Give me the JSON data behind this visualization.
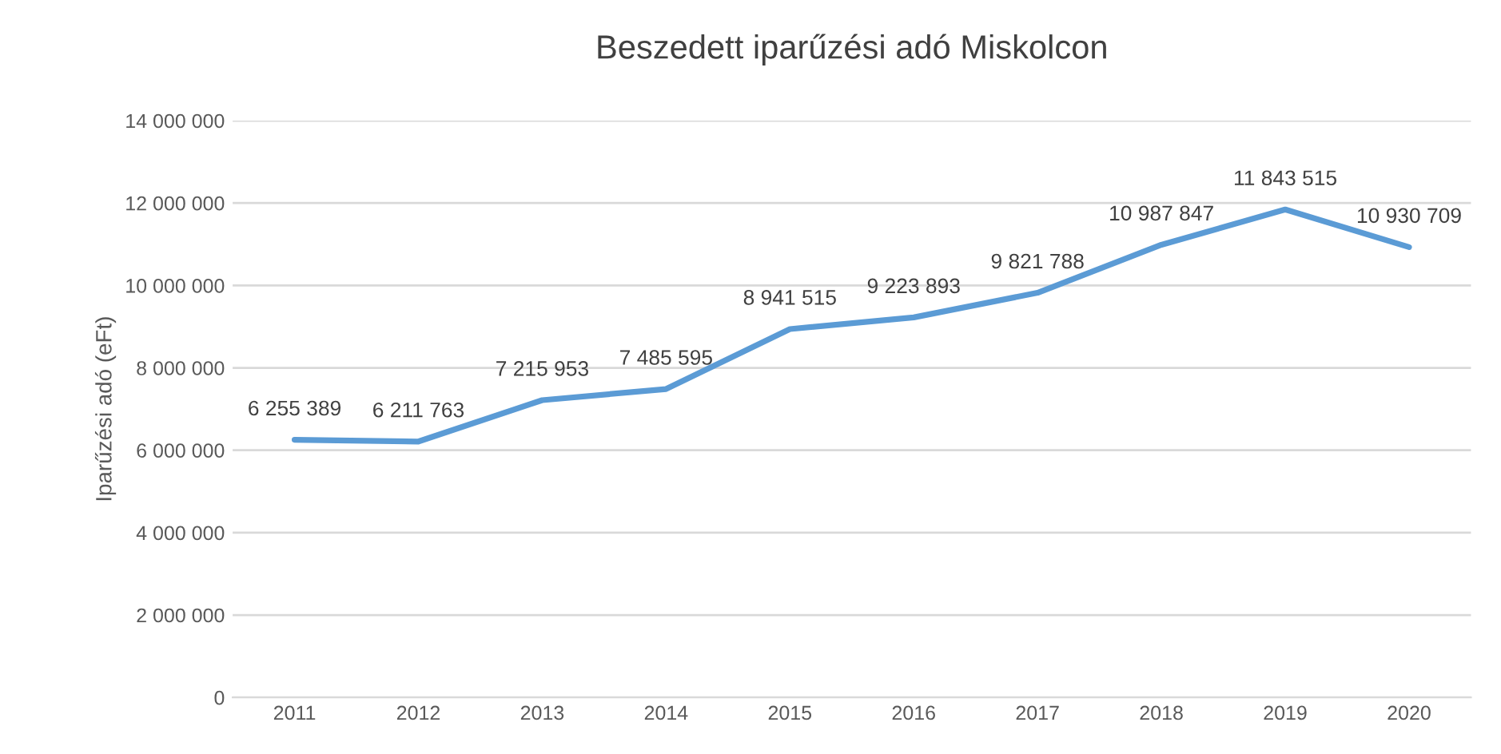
{
  "chart_data": {
    "type": "line",
    "title": "Beszedett iparűzési adó Miskolcon",
    "ylabel": "Iparűzési adó (eFt)",
    "categories": [
      "2011",
      "2012",
      "2013",
      "2014",
      "2015",
      "2016",
      "2017",
      "2018",
      "2019",
      "2020"
    ],
    "series": [
      {
        "color": "#5b9bd5",
        "values": [
          6255389,
          6211763,
          7215953,
          7485595,
          8941515,
          9223893,
          9821788,
          10987847,
          11843515,
          10930709
        ],
        "value_labels": [
          "6 255 389",
          "6 211 763",
          "7 215 953",
          "7 485 595",
          "8 941 515",
          "9 223 893",
          "9 821 788",
          "10 987 847",
          "11 843 515",
          "10 930 709"
        ]
      }
    ],
    "ylim": [
      0,
      14000000
    ],
    "yticks": [
      {
        "value": 0,
        "label": "0"
      },
      {
        "value": 2000000,
        "label": "2 000 000"
      },
      {
        "value": 4000000,
        "label": "4 000 000"
      },
      {
        "value": 6000000,
        "label": "6 000 000"
      },
      {
        "value": 8000000,
        "label": "8 000 000"
      },
      {
        "value": 10000000,
        "label": "10 000 000"
      },
      {
        "value": 12000000,
        "label": "12 000 000"
      },
      {
        "value": 14000000,
        "label": "14 000 000"
      }
    ],
    "grid": "y",
    "marker": "none",
    "line_style": "solid"
  }
}
